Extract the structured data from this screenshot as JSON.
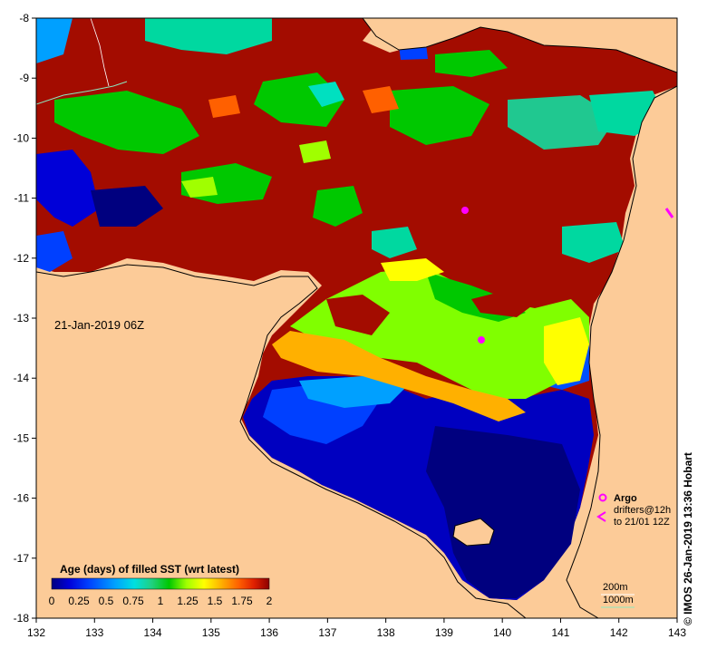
{
  "map": {
    "timestamp": "21-Jan-2019 06Z",
    "credit": "© IMOS 26-Jan-2019 13:36 Hobart",
    "x_ticks": [
      "132",
      "133",
      "134",
      "135",
      "136",
      "137",
      "138",
      "139",
      "140",
      "141",
      "142",
      "143"
    ],
    "y_ticks": [
      "-8",
      "-9",
      "-10",
      "-11",
      "-12",
      "-13",
      "-14",
      "-15",
      "-16",
      "-17",
      "-18"
    ],
    "xlim": [
      132,
      143
    ],
    "ylim": [
      -18,
      -8
    ],
    "colorbar": {
      "title": "Age (days) of filled SST (wrt latest)",
      "labels": [
        "0",
        "0.25",
        "0.5",
        "0.75",
        "1",
        "1.25",
        "1.5",
        "1.75",
        "2"
      ],
      "range": [
        0,
        2
      ],
      "colors": [
        "#00007f",
        "#0000d8",
        "#0040ff",
        "#00a0ff",
        "#00e0e0",
        "#20d080",
        "#00c800",
        "#a0ff00",
        "#ffff00",
        "#ffb000",
        "#ff6000",
        "#e02000",
        "#8b0000"
      ]
    },
    "legend": {
      "argo": "Argo",
      "drifters": "drifters@12h",
      "drifters_to": "to 21/01 12Z",
      "depth_200": "200m",
      "depth_1000": "1000m"
    },
    "colors": {
      "land": "#fccb98",
      "old_sst": "#a30c00",
      "argo": "#ff00ff",
      "coast": "#000000",
      "isobath_1000": "#8be8c0"
    }
  }
}
